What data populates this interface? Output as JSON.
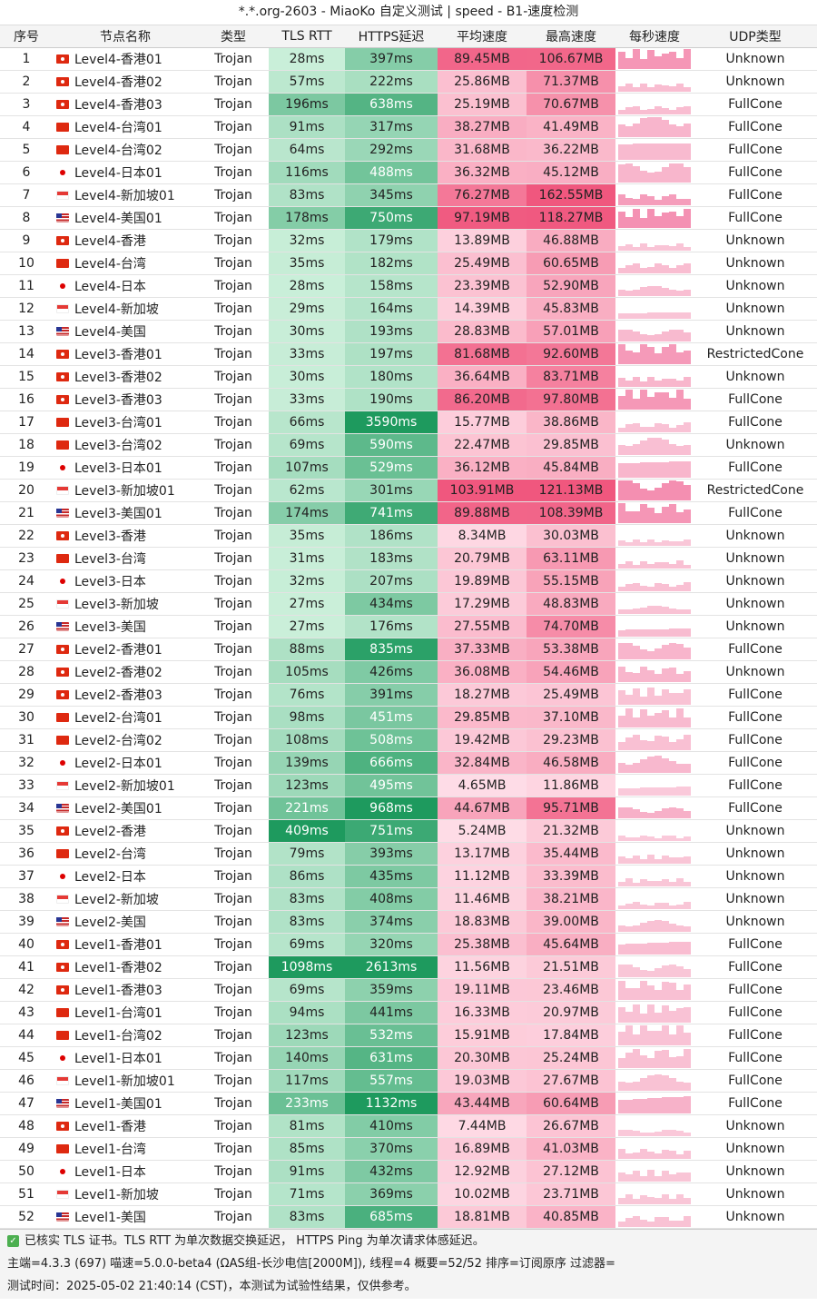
{
  "title": "*.*.org-2603 - MiaoKo 自定义测试 | speed - B1-速度检测",
  "headers": [
    "序号",
    "节点名称",
    "类型",
    "TLS RTT",
    "HTTPS延迟",
    "平均速度",
    "最高速度",
    "每秒速度",
    "UDP类型"
  ],
  "rows": [
    [
      "1",
      "hk",
      "Level4-香港01",
      "Trojan",
      "28ms",
      "397ms",
      "89.45MB",
      "106.67MB",
      "Unknown"
    ],
    [
      "2",
      "hk",
      "Level4-香港02",
      "Trojan",
      "57ms",
      "222ms",
      "25.86MB",
      "71.37MB",
      "Unknown"
    ],
    [
      "3",
      "hk",
      "Level4-香港03",
      "Trojan",
      "196ms",
      "638ms",
      "25.19MB",
      "70.67MB",
      "FullCone"
    ],
    [
      "4",
      "tw",
      "Level4-台湾01",
      "Trojan",
      "91ms",
      "317ms",
      "38.27MB",
      "41.49MB",
      "FullCone"
    ],
    [
      "5",
      "tw",
      "Level4-台湾02",
      "Trojan",
      "64ms",
      "292ms",
      "31.68MB",
      "36.22MB",
      "FullCone"
    ],
    [
      "6",
      "jp",
      "Level4-日本01",
      "Trojan",
      "116ms",
      "488ms",
      "36.32MB",
      "45.12MB",
      "FullCone"
    ],
    [
      "7",
      "sg",
      "Level4-新加坡01",
      "Trojan",
      "83ms",
      "345ms",
      "76.27MB",
      "162.55MB",
      "FullCone"
    ],
    [
      "8",
      "us",
      "Level4-美国01",
      "Trojan",
      "178ms",
      "750ms",
      "97.19MB",
      "118.27MB",
      "FullCone"
    ],
    [
      "9",
      "hk",
      "Level4-香港",
      "Trojan",
      "32ms",
      "179ms",
      "13.89MB",
      "46.88MB",
      "Unknown"
    ],
    [
      "10",
      "tw",
      "Level4-台湾",
      "Trojan",
      "35ms",
      "182ms",
      "25.49MB",
      "60.65MB",
      "Unknown"
    ],
    [
      "11",
      "jp",
      "Level4-日本",
      "Trojan",
      "28ms",
      "158ms",
      "23.39MB",
      "52.90MB",
      "Unknown"
    ],
    [
      "12",
      "sg",
      "Level4-新加坡",
      "Trojan",
      "29ms",
      "164ms",
      "14.39MB",
      "45.83MB",
      "Unknown"
    ],
    [
      "13",
      "us",
      "Level4-美国",
      "Trojan",
      "30ms",
      "193ms",
      "28.83MB",
      "57.01MB",
      "Unknown"
    ],
    [
      "14",
      "hk",
      "Level3-香港01",
      "Trojan",
      "33ms",
      "197ms",
      "81.68MB",
      "92.60MB",
      "RestrictedCone"
    ],
    [
      "15",
      "hk",
      "Level3-香港02",
      "Trojan",
      "30ms",
      "180ms",
      "36.64MB",
      "83.71MB",
      "Unknown"
    ],
    [
      "16",
      "hk",
      "Level3-香港03",
      "Trojan",
      "33ms",
      "190ms",
      "86.20MB",
      "97.80MB",
      "FullCone"
    ],
    [
      "17",
      "tw",
      "Level3-台湾01",
      "Trojan",
      "66ms",
      "3590ms",
      "15.77MB",
      "38.86MB",
      "FullCone"
    ],
    [
      "18",
      "tw",
      "Level3-台湾02",
      "Trojan",
      "69ms",
      "590ms",
      "22.47MB",
      "29.85MB",
      "Unknown"
    ],
    [
      "19",
      "jp",
      "Level3-日本01",
      "Trojan",
      "107ms",
      "529ms",
      "36.12MB",
      "45.84MB",
      "FullCone"
    ],
    [
      "20",
      "sg",
      "Level3-新加坡01",
      "Trojan",
      "62ms",
      "301ms",
      "103.91MB",
      "121.13MB",
      "RestrictedCone"
    ],
    [
      "21",
      "us",
      "Level3-美国01",
      "Trojan",
      "174ms",
      "741ms",
      "89.88MB",
      "108.39MB",
      "FullCone"
    ],
    [
      "22",
      "hk",
      "Level3-香港",
      "Trojan",
      "35ms",
      "186ms",
      "8.34MB",
      "30.03MB",
      "Unknown"
    ],
    [
      "23",
      "tw",
      "Level3-台湾",
      "Trojan",
      "31ms",
      "183ms",
      "20.79MB",
      "63.11MB",
      "Unknown"
    ],
    [
      "24",
      "jp",
      "Level3-日本",
      "Trojan",
      "32ms",
      "207ms",
      "19.89MB",
      "55.15MB",
      "Unknown"
    ],
    [
      "25",
      "sg",
      "Level3-新加坡",
      "Trojan",
      "27ms",
      "434ms",
      "17.29MB",
      "48.83MB",
      "Unknown"
    ],
    [
      "26",
      "us",
      "Level3-美国",
      "Trojan",
      "27ms",
      "176ms",
      "27.55MB",
      "74.70MB",
      "Unknown"
    ],
    [
      "27",
      "hk",
      "Level2-香港01",
      "Trojan",
      "88ms",
      "835ms",
      "37.33MB",
      "53.38MB",
      "FullCone"
    ],
    [
      "28",
      "hk",
      "Level2-香港02",
      "Trojan",
      "105ms",
      "426ms",
      "36.08MB",
      "54.46MB",
      "Unknown"
    ],
    [
      "29",
      "hk",
      "Level2-香港03",
      "Trojan",
      "76ms",
      "391ms",
      "18.27MB",
      "25.49MB",
      "FullCone"
    ],
    [
      "30",
      "tw",
      "Level2-台湾01",
      "Trojan",
      "98ms",
      "451ms",
      "29.85MB",
      "37.10MB",
      "FullCone"
    ],
    [
      "31",
      "tw",
      "Level2-台湾02",
      "Trojan",
      "108ms",
      "508ms",
      "19.42MB",
      "29.23MB",
      "FullCone"
    ],
    [
      "32",
      "jp",
      "Level2-日本01",
      "Trojan",
      "139ms",
      "666ms",
      "32.84MB",
      "46.58MB",
      "FullCone"
    ],
    [
      "33",
      "sg",
      "Level2-新加坡01",
      "Trojan",
      "123ms",
      "495ms",
      "4.65MB",
      "11.86MB",
      "FullCone"
    ],
    [
      "34",
      "us",
      "Level2-美国01",
      "Trojan",
      "221ms",
      "968ms",
      "44.67MB",
      "95.71MB",
      "FullCone"
    ],
    [
      "35",
      "hk",
      "Level2-香港",
      "Trojan",
      "409ms",
      "751ms",
      "5.24MB",
      "21.32MB",
      "Unknown"
    ],
    [
      "36",
      "tw",
      "Level2-台湾",
      "Trojan",
      "79ms",
      "393ms",
      "13.17MB",
      "35.44MB",
      "Unknown"
    ],
    [
      "37",
      "jp",
      "Level2-日本",
      "Trojan",
      "86ms",
      "435ms",
      "11.12MB",
      "33.39MB",
      "Unknown"
    ],
    [
      "38",
      "sg",
      "Level2-新加坡",
      "Trojan",
      "83ms",
      "408ms",
      "11.46MB",
      "38.21MB",
      "Unknown"
    ],
    [
      "39",
      "us",
      "Level2-美国",
      "Trojan",
      "83ms",
      "374ms",
      "18.83MB",
      "39.00MB",
      "Unknown"
    ],
    [
      "40",
      "hk",
      "Level1-香港01",
      "Trojan",
      "69ms",
      "320ms",
      "25.38MB",
      "45.64MB",
      "FullCone"
    ],
    [
      "41",
      "hk",
      "Level1-香港02",
      "Trojan",
      "1098ms",
      "2613ms",
      "11.56MB",
      "21.51MB",
      "FullCone"
    ],
    [
      "42",
      "hk",
      "Level1-香港03",
      "Trojan",
      "69ms",
      "359ms",
      "19.11MB",
      "23.46MB",
      "FullCone"
    ],
    [
      "43",
      "tw",
      "Level1-台湾01",
      "Trojan",
      "94ms",
      "441ms",
      "16.33MB",
      "20.97MB",
      "FullCone"
    ],
    [
      "44",
      "tw",
      "Level1-台湾02",
      "Trojan",
      "123ms",
      "532ms",
      "15.91MB",
      "17.84MB",
      "FullCone"
    ],
    [
      "45",
      "jp",
      "Level1-日本01",
      "Trojan",
      "140ms",
      "631ms",
      "20.30MB",
      "25.24MB",
      "FullCone"
    ],
    [
      "46",
      "sg",
      "Level1-新加坡01",
      "Trojan",
      "117ms",
      "557ms",
      "19.03MB",
      "27.67MB",
      "FullCone"
    ],
    [
      "47",
      "us",
      "Level1-美国01",
      "Trojan",
      "233ms",
      "1132ms",
      "43.44MB",
      "60.64MB",
      "FullCone"
    ],
    [
      "48",
      "hk",
      "Level1-香港",
      "Trojan",
      "81ms",
      "410ms",
      "7.44MB",
      "26.67MB",
      "Unknown"
    ],
    [
      "49",
      "tw",
      "Level1-台湾",
      "Trojan",
      "85ms",
      "370ms",
      "16.89MB",
      "41.03MB",
      "Unknown"
    ],
    [
      "50",
      "jp",
      "Level1-日本",
      "Trojan",
      "91ms",
      "432ms",
      "12.92MB",
      "27.12MB",
      "Unknown"
    ],
    [
      "51",
      "sg",
      "Level1-新加坡",
      "Trojan",
      "71ms",
      "369ms",
      "10.02MB",
      "23.71MB",
      "Unknown"
    ],
    [
      "52",
      "us",
      "Level1-美国",
      "Trojan",
      "83ms",
      "685ms",
      "18.81MB",
      "40.85MB",
      "Unknown"
    ]
  ],
  "footer": {
    "line1": "已核实 TLS 证书。TLS RTT 为单次数据交换延迟， HTTPS Ping 为单次请求体感延迟。",
    "line2": "主端=4.3.3 (697) 喵速=5.0.0-beta4 (ΩAS组-长沙电信[2000M]), 线程=4 概要=52/52 排序=订阅原序 过滤器=",
    "line3": "测试时间：2025-05-02 21:40:14 (CST)，本测试为试验性结果，仅供参考。"
  },
  "colors": {
    "green_light": "#d6f5e2",
    "green_dark": "#1e9a5e",
    "pink_light": "#ffe3ec",
    "pink_dark": "#f0577e",
    "sparkline": "#f48fb1"
  }
}
